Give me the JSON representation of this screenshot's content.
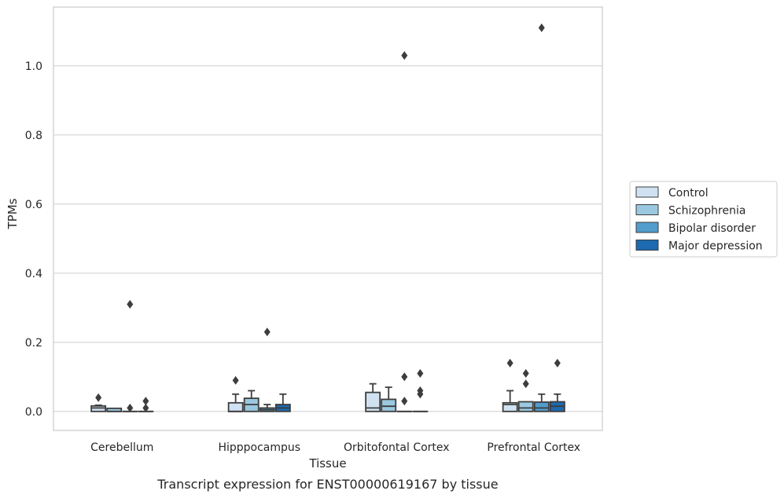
{
  "chart_data": {
    "type": "box",
    "caption": "Transcript expression for ENST00000619167 by tissue",
    "xlabel": "Tissue",
    "ylabel": "TPMs",
    "ylim": [
      -0.055,
      1.17
    ],
    "yticks": [
      0.0,
      0.2,
      0.4,
      0.6,
      0.8,
      1.0
    ],
    "ytick_labels": [
      "0.0",
      "0.2",
      "0.4",
      "0.6",
      "0.8",
      "1.0"
    ],
    "grid": "horizontal",
    "legend_position": "right",
    "categories": [
      "Cerebellum",
      "Hipppocampus",
      "Orbitofontal Cortex",
      "Prefrontal Cortex"
    ],
    "series": [
      {
        "name": "Control",
        "color": "#d0e1f2",
        "boxes": [
          {
            "q1": 0.0,
            "median": 0.01,
            "q3": 0.016,
            "whisker_low": 0.0,
            "whisker_high": 0.018,
            "outliers": [
              0.04
            ]
          },
          {
            "q1": 0.0,
            "median": 0.0,
            "q3": 0.025,
            "whisker_low": 0.0,
            "whisker_high": 0.05,
            "outliers": [
              0.09
            ]
          },
          {
            "q1": 0.0,
            "median": 0.01,
            "q3": 0.055,
            "whisker_low": 0.0,
            "whisker_high": 0.08,
            "outliers": []
          },
          {
            "q1": 0.0,
            "median": 0.02,
            "q3": 0.025,
            "whisker_low": 0.0,
            "whisker_high": 0.06,
            "outliers": [
              0.14
            ]
          }
        ]
      },
      {
        "name": "Schizophrenia",
        "color": "#9ac8e0",
        "boxes": [
          {
            "q1": 0.0,
            "median": 0.0,
            "q3": 0.009,
            "whisker_low": 0.0,
            "whisker_high": 0.009,
            "outliers": []
          },
          {
            "q1": 0.0,
            "median": 0.02,
            "q3": 0.038,
            "whisker_low": 0.0,
            "whisker_high": 0.06,
            "outliers": []
          },
          {
            "q1": 0.0,
            "median": 0.015,
            "q3": 0.035,
            "whisker_low": 0.0,
            "whisker_high": 0.07,
            "outliers": []
          },
          {
            "q1": 0.0,
            "median": 0.01,
            "q3": 0.028,
            "whisker_low": 0.0,
            "whisker_high": 0.028,
            "outliers": [
              0.08,
              0.11
            ]
          }
        ]
      },
      {
        "name": "Bipolar disorder",
        "color": "#529dcc",
        "boxes": [
          {
            "q1": 0.0,
            "median": 0.0,
            "q3": 0.0,
            "whisker_low": 0.0,
            "whisker_high": 0.0,
            "outliers": [
              0.31,
              0.01
            ]
          },
          {
            "q1": 0.0,
            "median": 0.005,
            "q3": 0.01,
            "whisker_low": 0.0,
            "whisker_high": 0.02,
            "outliers": [
              0.23
            ]
          },
          {
            "q1": 0.0,
            "median": 0.0,
            "q3": 0.0,
            "whisker_low": 0.0,
            "whisker_high": 0.0,
            "outliers": [
              1.03,
              0.03,
              0.1
            ]
          },
          {
            "q1": 0.0,
            "median": 0.01,
            "q3": 0.027,
            "whisker_low": 0.0,
            "whisker_high": 0.05,
            "outliers": [
              1.11
            ]
          }
        ]
      },
      {
        "name": "Major depression",
        "color": "#1c6aaf",
        "boxes": [
          {
            "q1": 0.0,
            "median": 0.0,
            "q3": 0.0,
            "whisker_low": 0.0,
            "whisker_high": 0.0,
            "outliers": [
              0.03,
              0.01
            ]
          },
          {
            "q1": 0.0,
            "median": 0.01,
            "q3": 0.02,
            "whisker_low": 0.0,
            "whisker_high": 0.05,
            "outliers": []
          },
          {
            "q1": 0.0,
            "median": 0.0,
            "q3": 0.0,
            "whisker_low": 0.0,
            "whisker_high": 0.0,
            "outliers": [
              0.11,
              0.06,
              0.05
            ]
          },
          {
            "q1": 0.0,
            "median": 0.015,
            "q3": 0.028,
            "whisker_low": 0.0,
            "whisker_high": 0.05,
            "outliers": [
              0.14
            ]
          }
        ]
      }
    ]
  }
}
